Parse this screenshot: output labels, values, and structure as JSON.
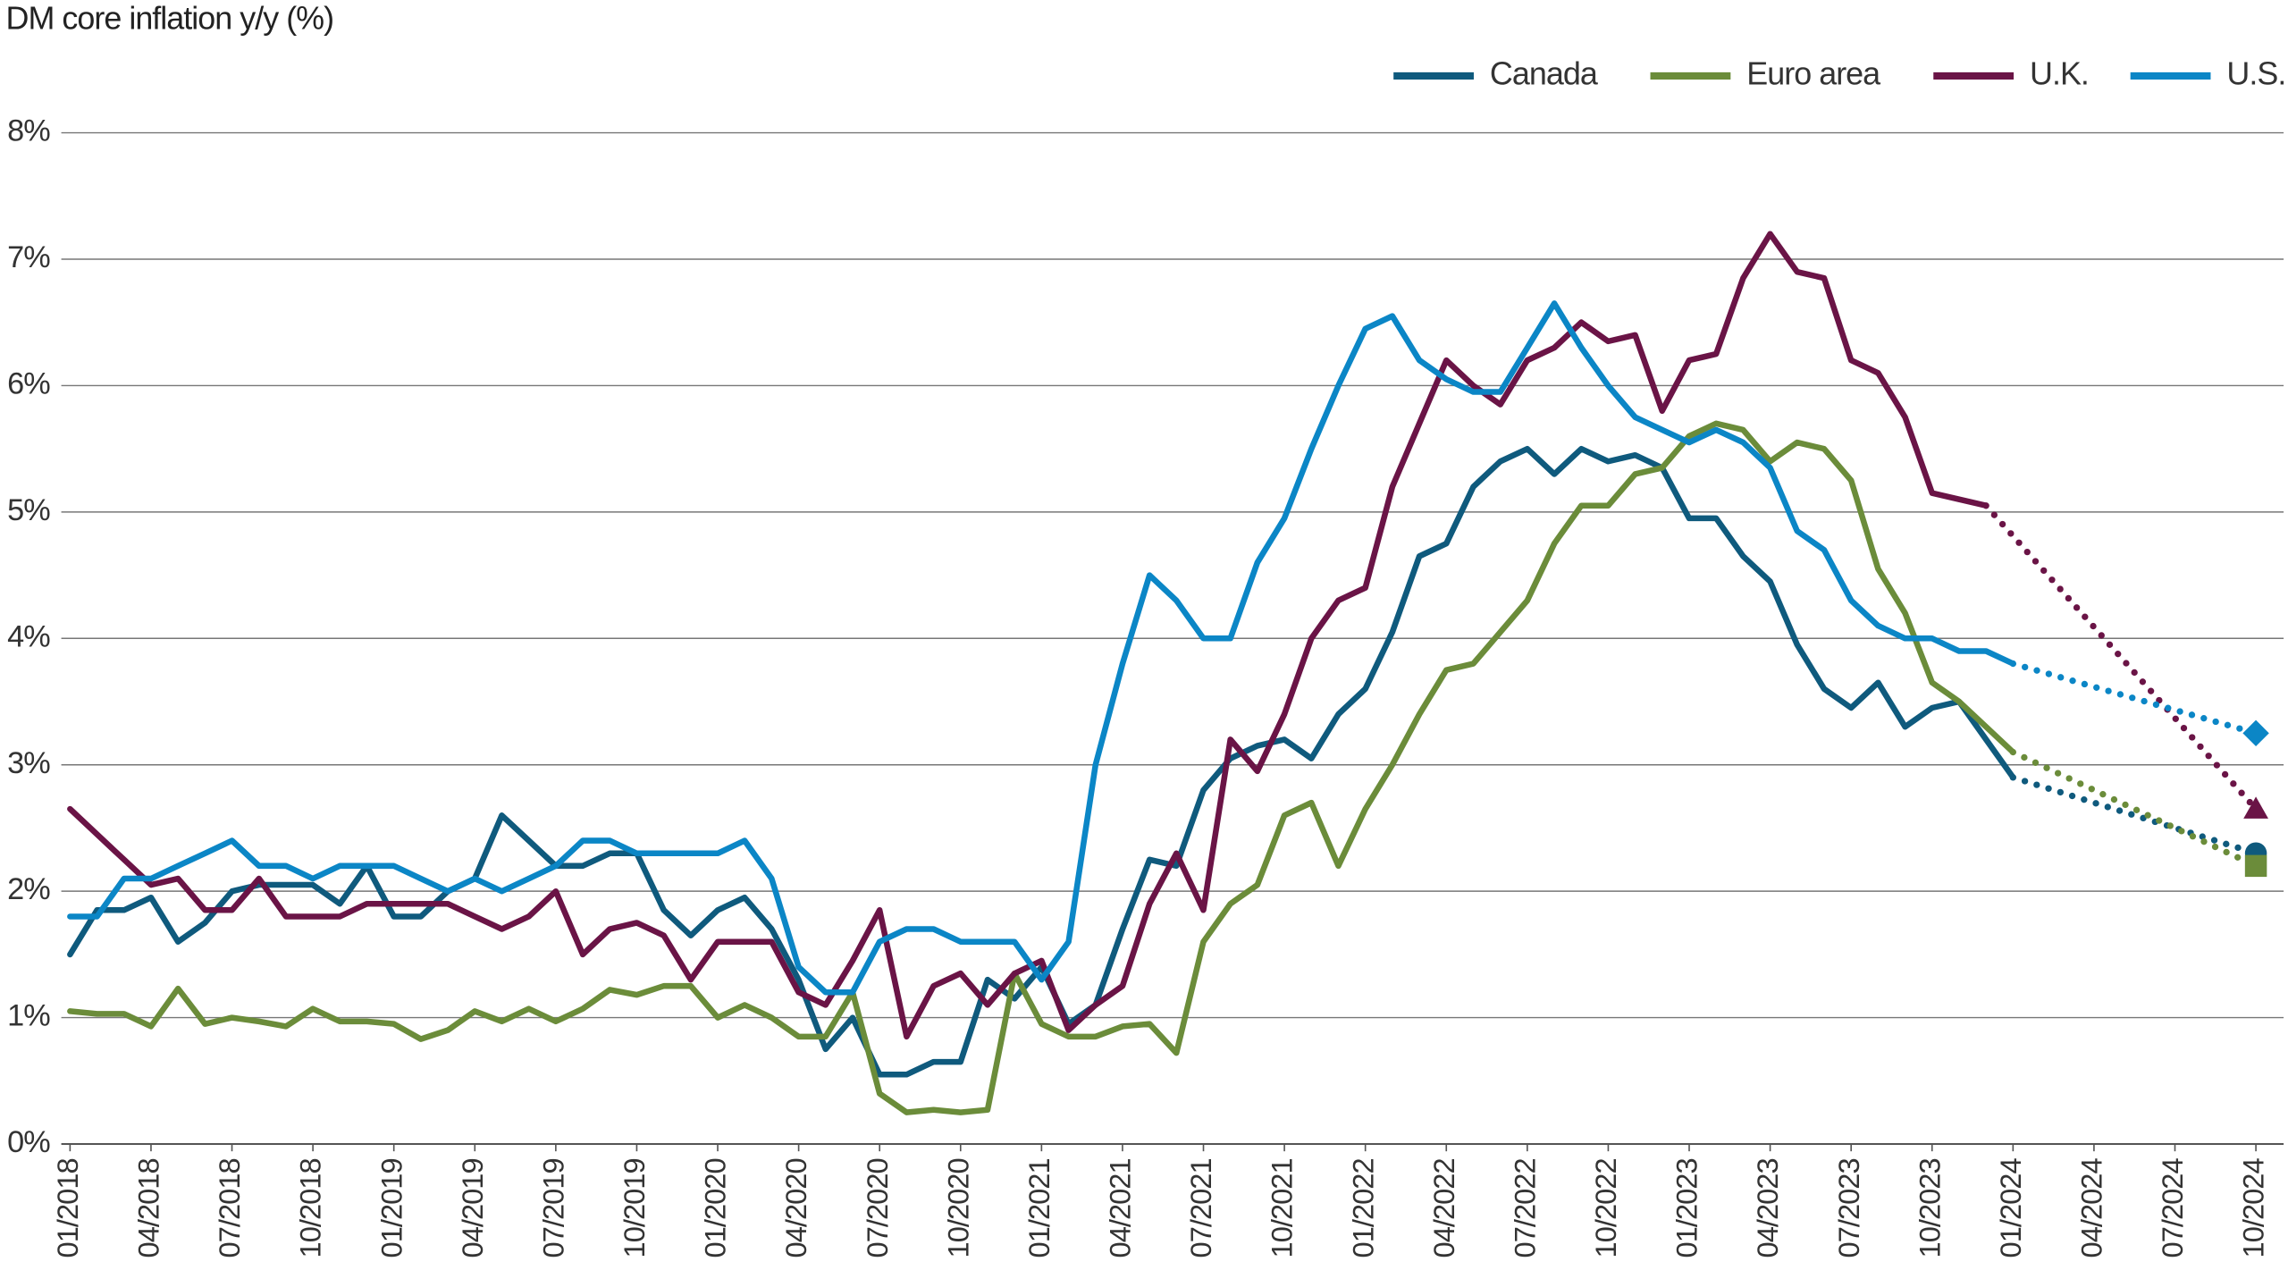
{
  "chart_data": {
    "type": "line",
    "title": "DM core inflation y/y (%)",
    "categories": [
      "01/2018",
      null,
      null,
      "04/2018",
      null,
      null,
      "07/2018",
      null,
      null,
      "10/2018",
      null,
      null,
      "01/2019",
      null,
      null,
      "04/2019",
      null,
      null,
      "07/2019",
      null,
      null,
      "10/2019",
      null,
      null,
      "01/2020",
      null,
      null,
      "04/2020",
      null,
      null,
      "07/2020",
      null,
      null,
      "10/2020",
      null,
      null,
      "01/2021",
      null,
      null,
      "04/2021",
      null,
      null,
      "07/2021",
      null,
      null,
      "10/2021",
      null,
      null,
      "01/2022",
      null,
      null,
      "04/2022",
      null,
      null,
      "07/2022",
      null,
      null,
      "10/2022",
      null,
      null,
      "01/2023",
      null,
      null,
      "04/2023",
      null,
      null,
      "07/2023",
      null,
      null,
      "10/2023",
      null,
      null,
      "01/2024",
      null,
      null,
      "04/2024",
      null,
      null,
      "07/2024",
      null,
      null,
      "10/2024"
    ],
    "ylim": [
      0,
      8
    ],
    "yticks": [
      {
        "value": 0,
        "label": "0%"
      },
      {
        "value": 1,
        "label": "1%"
      },
      {
        "value": 2,
        "label": "2%"
      },
      {
        "value": 3,
        "label": "3%"
      },
      {
        "value": 4,
        "label": "4%"
      },
      {
        "value": 5,
        "label": "5%"
      },
      {
        "value": 6,
        "label": "6%"
      },
      {
        "value": 7,
        "label": "7%"
      },
      {
        "value": 8,
        "label": "8%"
      }
    ],
    "grid": true,
    "legend": "top-right",
    "series": [
      {
        "name": "Canada",
        "color": "#0f5a7d",
        "marker": "circle",
        "forecast": 2.3,
        "values": [
          1.5,
          1.85,
          1.85,
          1.95,
          1.6,
          1.75,
          2.0,
          2.05,
          2.05,
          2.05,
          1.9,
          2.2,
          1.8,
          1.8,
          2.0,
          2.1,
          2.6,
          2.4,
          2.2,
          2.2,
          2.3,
          2.3,
          1.85,
          1.65,
          1.85,
          1.95,
          1.7,
          1.3,
          0.75,
          1.0,
          0.55,
          0.55,
          0.65,
          0.65,
          1.3,
          1.15,
          1.4,
          0.95,
          1.1,
          1.7,
          2.25,
          2.2,
          2.8,
          3.05,
          3.15,
          3.2,
          3.05,
          3.4,
          3.6,
          4.05,
          4.65,
          4.75,
          5.2,
          5.4,
          5.5,
          5.3,
          5.5,
          5.4,
          5.45,
          5.35,
          4.95,
          4.95,
          4.65,
          4.45,
          3.95,
          3.6,
          3.45,
          3.65,
          3.3,
          3.45,
          3.5,
          3.2,
          2.9,
          null,
          null,
          null,
          null,
          null,
          null,
          null,
          null,
          null
        ]
      },
      {
        "name": "Euro area",
        "color": "#6b8c3a",
        "marker": "square",
        "forecast": 2.2,
        "values": [
          1.05,
          1.03,
          1.03,
          0.93,
          1.23,
          0.95,
          1.0,
          0.97,
          0.93,
          1.07,
          0.97,
          0.97,
          0.95,
          0.83,
          0.9,
          1.05,
          0.97,
          1.07,
          0.97,
          1.07,
          1.22,
          1.18,
          1.25,
          1.25,
          1.0,
          1.1,
          1.0,
          0.85,
          0.85,
          1.2,
          0.4,
          0.25,
          0.27,
          0.25,
          0.27,
          1.35,
          0.95,
          0.85,
          0.85,
          0.93,
          0.95,
          0.72,
          1.6,
          1.9,
          2.05,
          2.6,
          2.7,
          2.2,
          2.65,
          3.0,
          3.4,
          3.75,
          3.8,
          4.05,
          4.3,
          4.75,
          5.05,
          5.05,
          5.3,
          5.35,
          5.6,
          5.7,
          5.65,
          5.4,
          5.55,
          5.5,
          5.25,
          4.55,
          4.2,
          3.65,
          3.5,
          3.3,
          3.1,
          null,
          null,
          null,
          null,
          null,
          null,
          null,
          null,
          null
        ]
      },
      {
        "name": "U.K.",
        "color": "#6a1446",
        "marker": "triangle",
        "forecast": 2.65,
        "values": [
          2.65,
          2.45,
          2.25,
          2.05,
          2.1,
          1.85,
          1.85,
          2.1,
          1.8,
          1.8,
          1.8,
          1.9,
          1.9,
          1.9,
          1.9,
          1.8,
          1.7,
          1.8,
          2.0,
          1.5,
          1.7,
          1.75,
          1.65,
          1.3,
          1.6,
          1.6,
          1.6,
          1.2,
          1.1,
          1.45,
          1.85,
          0.85,
          1.25,
          1.35,
          1.1,
          1.35,
          1.45,
          0.9,
          1.1,
          1.25,
          1.9,
          2.3,
          1.85,
          3.2,
          2.95,
          3.4,
          4.0,
          4.3,
          4.4,
          5.2,
          5.7,
          6.2,
          6.0,
          5.85,
          6.2,
          6.3,
          6.5,
          6.35,
          6.4,
          5.8,
          6.2,
          6.25,
          6.85,
          7.2,
          6.9,
          6.85,
          6.2,
          6.1,
          5.75,
          5.15,
          5.1,
          5.05,
          null,
          null,
          null,
          null,
          null,
          null,
          null,
          null,
          null,
          null
        ]
      },
      {
        "name": "U.S.",
        "color": "#0b86c6",
        "marker": "diamond",
        "forecast": 3.25,
        "values": [
          1.8,
          1.8,
          2.1,
          2.1,
          2.2,
          2.3,
          2.4,
          2.2,
          2.2,
          2.1,
          2.2,
          2.2,
          2.2,
          2.1,
          2.0,
          2.1,
          2.0,
          2.1,
          2.2,
          2.4,
          2.4,
          2.3,
          2.3,
          2.3,
          2.3,
          2.4,
          2.1,
          1.4,
          1.2,
          1.2,
          1.6,
          1.7,
          1.7,
          1.6,
          1.6,
          1.6,
          1.3,
          1.6,
          3.0,
          3.8,
          4.5,
          4.3,
          4.0,
          4.0,
          4.6,
          4.95,
          5.5,
          6.0,
          6.45,
          6.55,
          6.2,
          6.05,
          5.95,
          5.95,
          6.3,
          6.65,
          6.3,
          6.0,
          5.75,
          5.65,
          5.55,
          5.65,
          5.55,
          5.35,
          4.85,
          4.7,
          4.3,
          4.1,
          4.0,
          4.0,
          3.9,
          3.9,
          3.8,
          null,
          null,
          null,
          null,
          null,
          null,
          null,
          null,
          null
        ]
      }
    ]
  }
}
